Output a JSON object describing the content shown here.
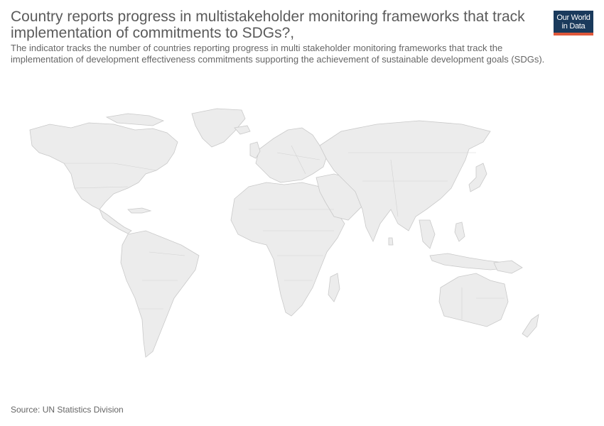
{
  "header": {
    "title": "Country reports progress in multistakeholder monitoring frameworks that track implementation of commitments to SDGs?,",
    "subtitle": "The indicator tracks the number of countries reporting progress in multi stakeholder monitoring frameworks that track the implementation of development effectiveness commitments supporting the achievement of sustainable development goals (SDGs)."
  },
  "logo": {
    "line1": "Our World",
    "line2": "in Data",
    "background": "#1a3a5c",
    "accent": "#e0583a"
  },
  "map": {
    "land_color": "#ececec",
    "border_color": "#c9c9c9"
  },
  "footer": {
    "source": "Source: UN Statistics Division"
  }
}
